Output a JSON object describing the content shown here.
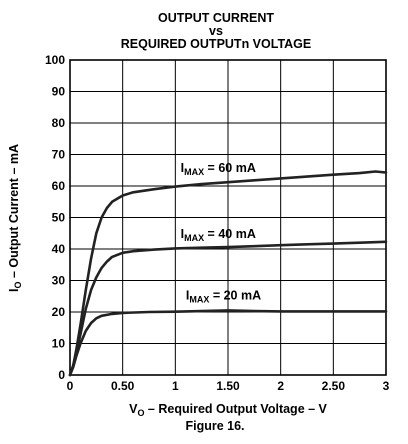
{
  "chart_data": {
    "type": "line",
    "title_line1": "OUTPUT CURRENT",
    "title_line2": "vs",
    "title_line3": "REQUIRED OUTPUTn VOLTAGE",
    "xlabel": {
      "main": "V",
      "sub": "O",
      "rest": " – Required Output Voltage – V"
    },
    "ylabel": {
      "main": "I",
      "sub": "O",
      "rest": " – Output Current – mA"
    },
    "caption": "Figure 16.",
    "xlim": [
      0,
      3
    ],
    "ylim": [
      0,
      100
    ],
    "x_ticks": [
      {
        "value": 0,
        "label": "0"
      },
      {
        "value": 0.5,
        "label": "0.50"
      },
      {
        "value": 1,
        "label": "1"
      },
      {
        "value": 1.5,
        "label": "1.50"
      },
      {
        "value": 2,
        "label": "2"
      },
      {
        "value": 2.5,
        "label": "2.50"
      },
      {
        "value": 3,
        "label": "3"
      }
    ],
    "y_ticks": [
      {
        "value": 0,
        "label": "0"
      },
      {
        "value": 10,
        "label": "10"
      },
      {
        "value": 20,
        "label": "20"
      },
      {
        "value": 30,
        "label": "30"
      },
      {
        "value": 40,
        "label": "40"
      },
      {
        "value": 50,
        "label": "50"
      },
      {
        "value": 60,
        "label": "60"
      },
      {
        "value": 70,
        "label": "70"
      },
      {
        "value": 80,
        "label": "80"
      },
      {
        "value": 90,
        "label": "90"
      },
      {
        "value": 100,
        "label": "100"
      }
    ],
    "grid": true,
    "series": [
      {
        "name": "IMAX = 60 mA",
        "label_main": "I",
        "label_sub": "MAX",
        "label_rest": " = 60 mA",
        "label_pos": {
          "x": 1.05,
          "y": 64.5
        },
        "points": [
          [
            0,
            0
          ],
          [
            0.03,
            3
          ],
          [
            0.06,
            8
          ],
          [
            0.1,
            16
          ],
          [
            0.15,
            27
          ],
          [
            0.2,
            37
          ],
          [
            0.25,
            45
          ],
          [
            0.3,
            50
          ],
          [
            0.35,
            53
          ],
          [
            0.4,
            55
          ],
          [
            0.5,
            57
          ],
          [
            0.6,
            58
          ],
          [
            0.8,
            59
          ],
          [
            1,
            59.8
          ],
          [
            1.25,
            60.6
          ],
          [
            1.5,
            61.2
          ],
          [
            1.75,
            61.8
          ],
          [
            2,
            62.4
          ],
          [
            2.25,
            63
          ],
          [
            2.5,
            63.6
          ],
          [
            2.75,
            64.1
          ],
          [
            2.9,
            64.6
          ],
          [
            3,
            64.3
          ]
        ]
      },
      {
        "name": "IMAX = 40 mA",
        "label_main": "I",
        "label_sub": "MAX",
        "label_rest": " = 40 mA",
        "label_pos": {
          "x": 1.05,
          "y": 43.5
        },
        "points": [
          [
            0,
            0
          ],
          [
            0.03,
            3
          ],
          [
            0.06,
            7
          ],
          [
            0.1,
            13
          ],
          [
            0.15,
            21
          ],
          [
            0.2,
            27
          ],
          [
            0.25,
            31
          ],
          [
            0.3,
            34
          ],
          [
            0.35,
            36
          ],
          [
            0.4,
            37.5
          ],
          [
            0.5,
            38.8
          ],
          [
            0.6,
            39.3
          ],
          [
            0.8,
            39.8
          ],
          [
            1,
            40.2
          ],
          [
            1.25,
            40.4
          ],
          [
            1.5,
            40.6
          ],
          [
            1.75,
            40.9
          ],
          [
            2,
            41.2
          ],
          [
            2.25,
            41.5
          ],
          [
            2.5,
            41.7
          ],
          [
            2.75,
            42
          ],
          [
            3,
            42.3
          ]
        ]
      },
      {
        "name": "IMAX = 20 mA",
        "label_main": "I",
        "label_sub": "MAX",
        "label_rest": " = 20 mA",
        "label_pos": {
          "x": 1.1,
          "y": 24.0
        },
        "points": [
          [
            0,
            0
          ],
          [
            0.03,
            2.5
          ],
          [
            0.06,
            6
          ],
          [
            0.1,
            10
          ],
          [
            0.15,
            14
          ],
          [
            0.2,
            16.5
          ],
          [
            0.25,
            18
          ],
          [
            0.3,
            18.8
          ],
          [
            0.4,
            19.4
          ],
          [
            0.5,
            19.7
          ],
          [
            0.75,
            20
          ],
          [
            1,
            20.1
          ],
          [
            1.25,
            20.3
          ],
          [
            1.5,
            20.5
          ],
          [
            1.75,
            20.3
          ],
          [
            2,
            20.2
          ],
          [
            2.5,
            20.2
          ],
          [
            3,
            20.2
          ]
        ]
      }
    ]
  }
}
